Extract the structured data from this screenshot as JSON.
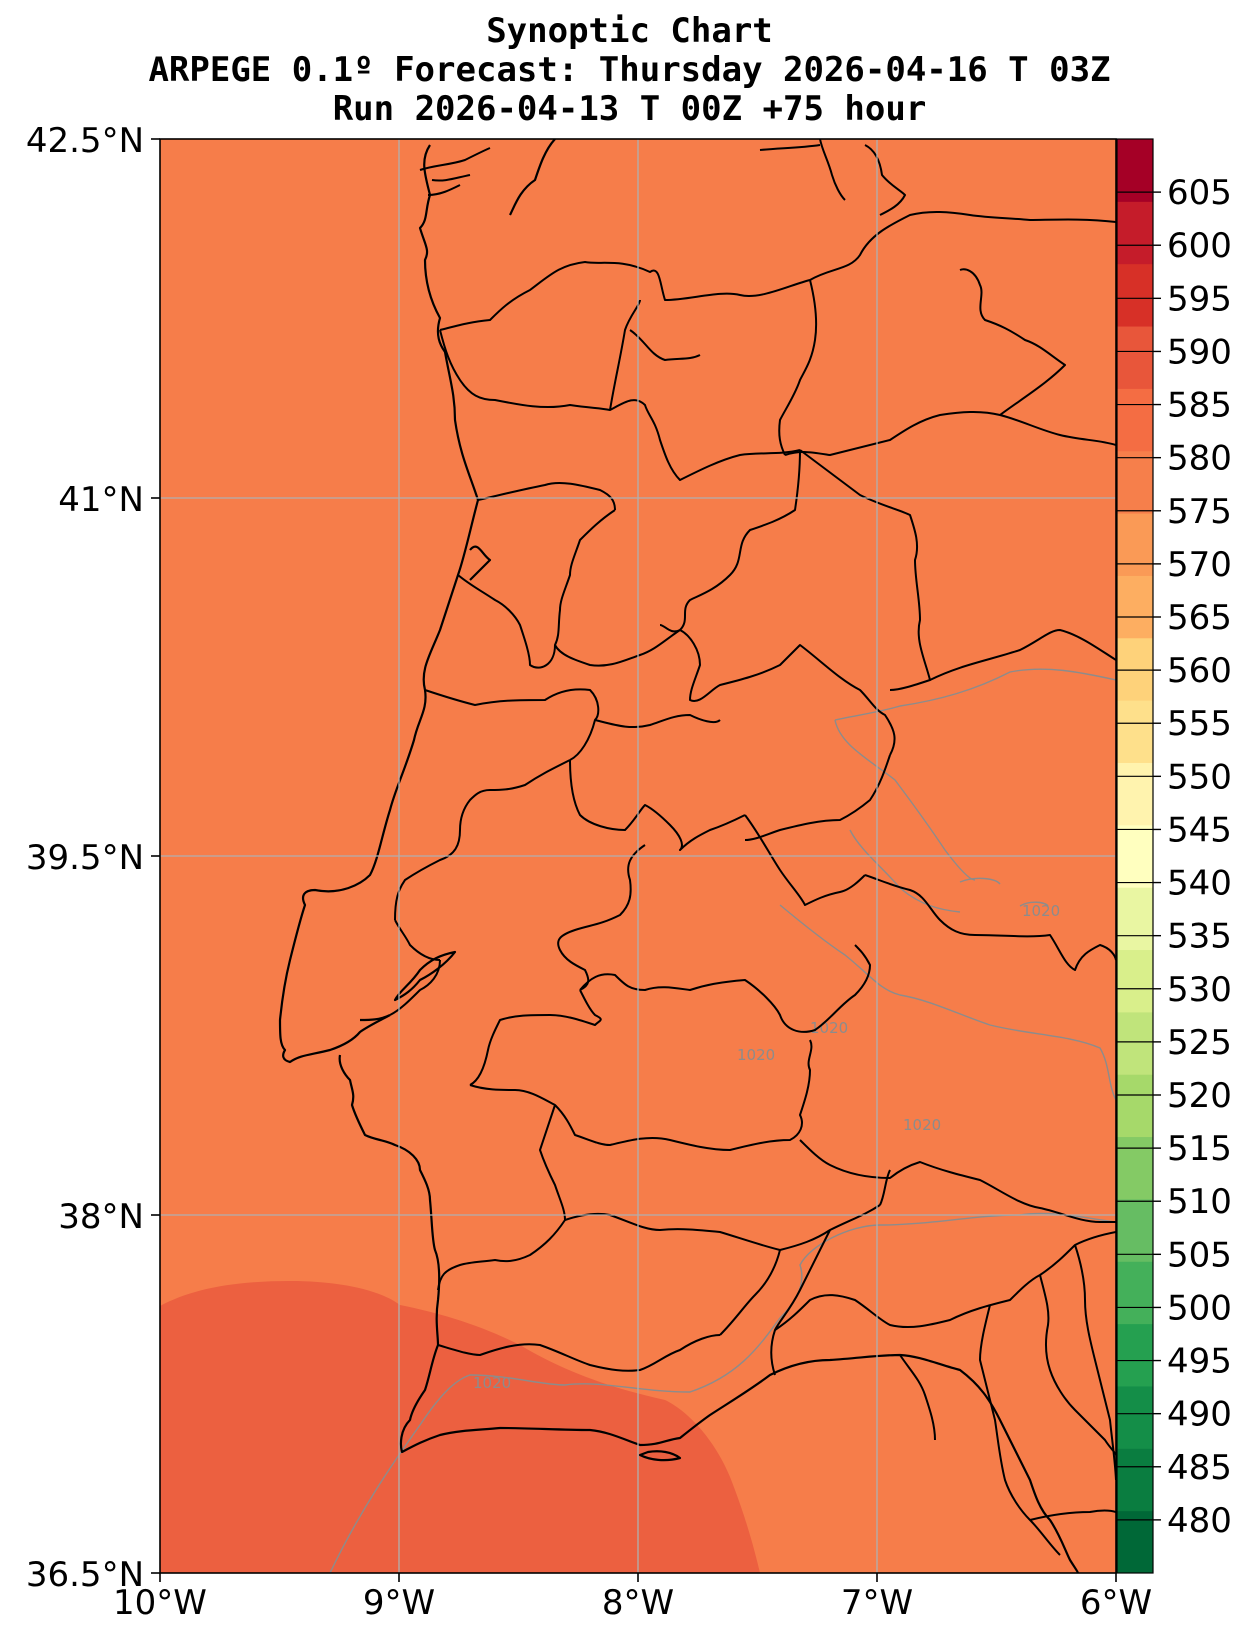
{
  "title": {
    "line1": "Synoptic Chart",
    "line2": "ARPEGE 0.1º Forecast: Thursday 2026-04-16 T 03Z",
    "line3": "Run 2026-04-13 T 00Z +75 hour"
  },
  "axes": {
    "lon_ticks": [
      "10°W",
      "9°W",
      "8°W",
      "7°W",
      "6°W"
    ],
    "lat_ticks": [
      "42.5°N",
      "41°N",
      "39.5°N",
      "38°N",
      "36.5°N"
    ],
    "lon_values": [
      -10,
      -9,
      -8,
      -7,
      -6
    ],
    "lat_values": [
      42.5,
      41,
      39.5,
      38,
      36.5
    ],
    "lon_range": [
      -10,
      -6
    ],
    "lat_range": [
      36.5,
      42.5
    ],
    "grid": true
  },
  "colorbar": {
    "ticks": [
      "605",
      "600",
      "595",
      "590",
      "585",
      "580",
      "575",
      "570",
      "565",
      "560",
      "555",
      "550",
      "545",
      "540",
      "535",
      "530",
      "525",
      "520",
      "515",
      "510",
      "505",
      "500",
      "495",
      "490",
      "485",
      "480"
    ],
    "range": [
      475,
      610
    ],
    "step": 5,
    "colors": [
      "#006837",
      "#0a7d40",
      "#148e48",
      "#25a050",
      "#44b05a",
      "#66bd63",
      "#84ca65",
      "#a6d96a",
      "#c0e47b",
      "#d9ef8b",
      "#e9f6a2",
      "#ffffbf",
      "#fff3ae",
      "#fee08b",
      "#fed27a",
      "#fdae61",
      "#fa9a56",
      "#f67f4b",
      "#f46d43",
      "#e8563a",
      "#d73027",
      "#c51c2a",
      "#a50026"
    ],
    "colors_order": "bottom-to-top"
  },
  "field": {
    "base_color": "#f67d4a",
    "high_color": "#ec6040"
  },
  "isobar_labels": [
    "1020",
    "1020",
    "1020",
    "1020",
    "1020"
  ]
}
